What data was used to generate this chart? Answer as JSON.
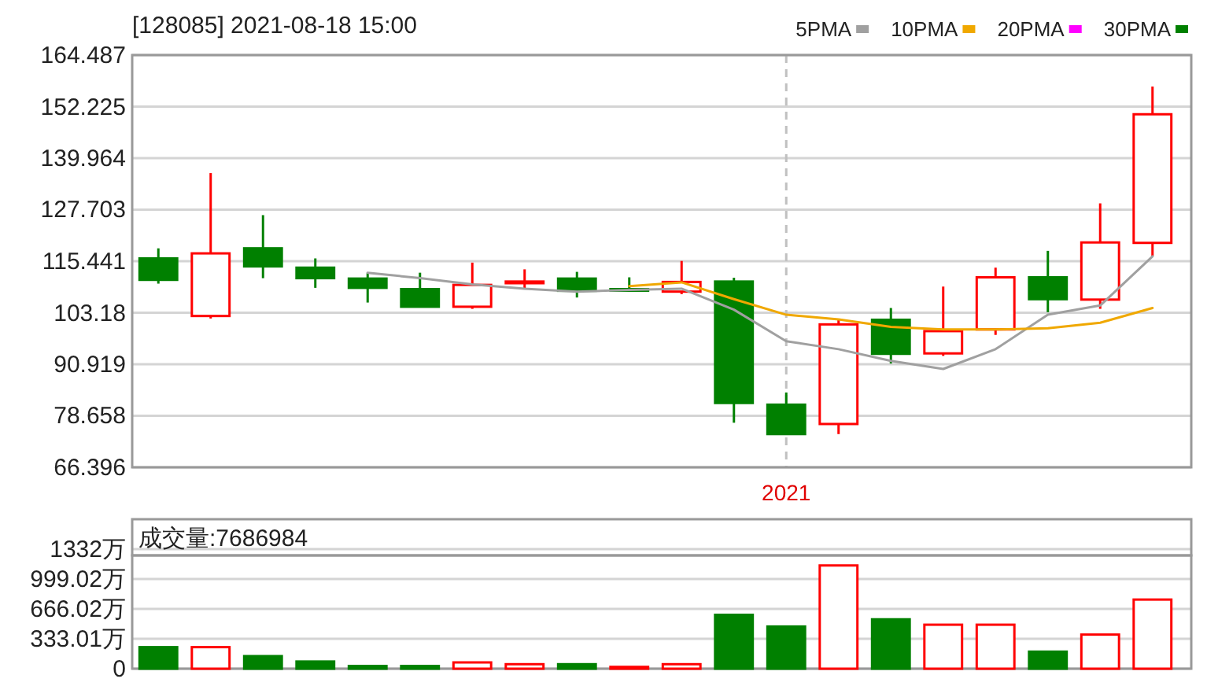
{
  "chart_data": [
    {
      "type": "candlestick",
      "title": "[128085] 2021-08-18 15:00",
      "categories": [
        null,
        null,
        null,
        null,
        null,
        null,
        null,
        null,
        null,
        null,
        null,
        null,
        "2021",
        null,
        null,
        null,
        null,
        null,
        null,
        null
      ],
      "ohlc": [
        [
          116.1,
          118.5,
          110.1,
          111.0
        ],
        [
          102.4,
          136.4,
          101.8,
          117.3
        ],
        [
          118.5,
          126.4,
          111.4,
          114.2
        ],
        [
          113.9,
          116.1,
          109.1,
          111.4
        ],
        [
          111.3,
          112.7,
          105.6,
          109.1
        ],
        [
          108.8,
          112.7,
          104.6,
          104.6
        ],
        [
          104.6,
          115.1,
          104.1,
          109.8
        ],
        [
          110.2,
          113.5,
          108.9,
          110.6
        ],
        [
          111.3,
          112.9,
          106.8,
          108.4
        ],
        [
          108.8,
          111.6,
          108.3,
          108.5
        ],
        [
          108.2,
          115.5,
          107.6,
          110.5
        ],
        [
          110.6,
          111.5,
          77.0,
          81.7
        ],
        [
          81.3,
          84.2,
          74.3,
          74.3
        ],
        [
          76.7,
          101.4,
          74.3,
          100.4
        ],
        [
          101.5,
          104.3,
          91.1,
          93.4
        ],
        [
          93.5,
          109.4,
          92.9,
          98.8
        ],
        [
          99.2,
          113.9,
          97.9,
          111.6
        ],
        [
          111.6,
          117.9,
          103.3,
          106.4
        ],
        [
          106.3,
          129.2,
          104.1,
          119.9
        ],
        [
          119.8,
          157.0,
          116.6,
          150.4
        ]
      ],
      "series": [
        {
          "name": "5PMA",
          "type": "line",
          "color": "#a0a0a0",
          "values": [
            null,
            null,
            null,
            null,
            112.7,
            111.4,
            109.9,
            108.9,
            108.2,
            108.6,
            108.9,
            103.9,
            96.4,
            94.5,
            91.7,
            89.8,
            94.5,
            102.7,
            104.9,
            116.6
          ]
        },
        {
          "name": "10PMA",
          "type": "line",
          "color": "#f0a800",
          "values": [
            null,
            null,
            null,
            null,
            null,
            null,
            null,
            null,
            null,
            109.5,
            110.4,
            106.4,
            102.7,
            101.6,
            99.8,
            99.2,
            99.2,
            99.5,
            100.8,
            104.3
          ]
        },
        {
          "name": "20PMA",
          "type": "line",
          "color": "#ff00ff",
          "values": [
            null,
            null,
            null,
            null,
            null,
            null,
            null,
            null,
            null,
            null,
            null,
            null,
            null,
            null,
            null,
            null,
            null,
            null,
            null,
            null
          ]
        },
        {
          "name": "30PMA",
          "type": "line",
          "color": "#008000",
          "values": [
            null,
            null,
            null,
            null,
            null,
            null,
            null,
            null,
            null,
            null,
            null,
            null,
            null,
            null,
            null,
            null,
            null,
            null,
            null,
            null
          ]
        }
      ],
      "ylim": [
        66.396,
        164.487
      ],
      "yticks": [
        66.396,
        78.658,
        90.919,
        103.18,
        115.441,
        127.703,
        139.964,
        152.225,
        164.487
      ],
      "grid": true,
      "legend": "top right"
    },
    {
      "type": "bar",
      "title": "成交量:7686984",
      "categories": [
        null,
        null,
        null,
        null,
        null,
        null,
        null,
        null,
        null,
        null,
        null,
        null,
        null,
        null,
        null,
        null,
        null,
        null,
        null,
        null
      ],
      "values": [
        240,
        240,
        140,
        80,
        30,
        30,
        70,
        50,
        50,
        20,
        50,
        600,
        470,
        1150,
        550,
        490,
        490,
        190,
        380,
        770
      ],
      "colors": [
        "#008000",
        "#ff0000",
        "#008000",
        "#008000",
        "#008000",
        "#008000",
        "#ff0000",
        "#ff0000",
        "#008000",
        "#ff0000",
        "#ff0000",
        "#008000",
        "#008000",
        "#ff0000",
        "#008000",
        "#ff0000",
        "#ff0000",
        "#008000",
        "#ff0000",
        "#ff0000"
      ],
      "ylim": [
        0,
        1332
      ],
      "yticks": [
        0,
        {
          "value": 333.01,
          "label": "333.01万"
        },
        {
          "value": 666.02,
          "label": "666.02万"
        },
        {
          "value": 999.02,
          "label": "999.02万"
        },
        {
          "value": 1332,
          "label": "1332万"
        }
      ],
      "grid": "y"
    }
  ]
}
